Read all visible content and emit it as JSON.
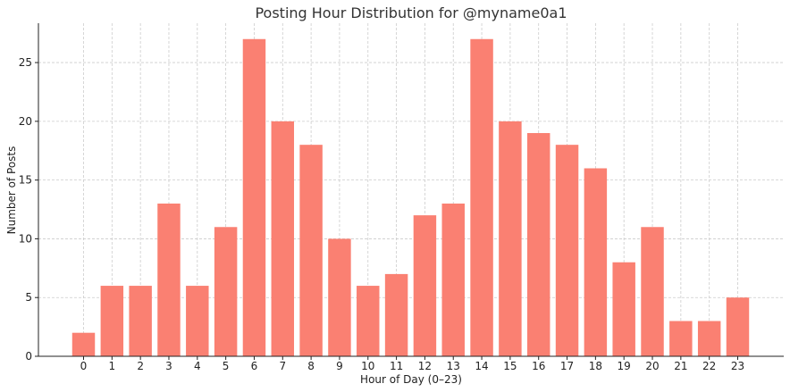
{
  "chart_data": {
    "type": "bar",
    "title": "Posting Hour Distribution for @myname0a1",
    "xlabel": "Hour of Day (0–23)",
    "ylabel": "Number of Posts",
    "categories": [
      "0",
      "1",
      "2",
      "3",
      "4",
      "5",
      "6",
      "7",
      "8",
      "9",
      "10",
      "11",
      "12",
      "13",
      "14",
      "15",
      "16",
      "17",
      "18",
      "19",
      "20",
      "21",
      "22",
      "23"
    ],
    "values": [
      2,
      6,
      6,
      13,
      6,
      11,
      27,
      20,
      18,
      10,
      6,
      7,
      12,
      13,
      27,
      20,
      19,
      18,
      16,
      8,
      11,
      3,
      3,
      5
    ],
    "ylim": [
      0,
      28.35
    ],
    "yticks": [
      0,
      5,
      10,
      15,
      20,
      25
    ],
    "grid": true,
    "bar_color": "#fa8072",
    "grid_color": "#cccccc"
  }
}
